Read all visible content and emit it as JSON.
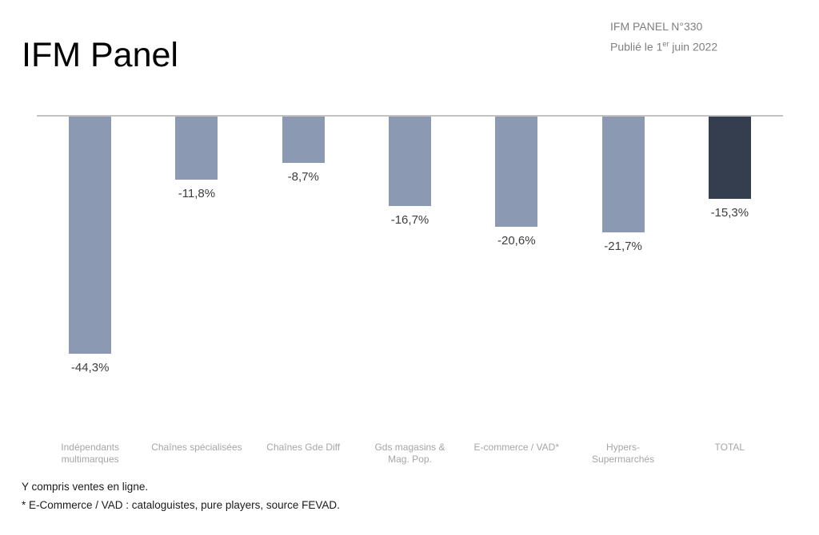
{
  "page": {
    "title": "IFM Panel",
    "header_right": {
      "line1": "IFM PANEL N°330",
      "line2_prefix": "Publié le 1",
      "line2_sup": "er",
      "line2_suffix": " juin 2022"
    },
    "footnotes": [
      "Y compris ventes en ligne.",
      "* E-Commerce / VAD : cataloguistes, pure players, source FEVAD."
    ]
  },
  "colors": {
    "bar_default": "#8b99b2",
    "bar_total": "#353e4f",
    "axis_line": "#c3c3c3",
    "data_label": "#3d3d3d",
    "category_label": "#a6a6a6",
    "header_right_text": "#7f7f7f"
  },
  "chart_data": {
    "type": "bar",
    "orientation": "vertical",
    "title": "IFM Panel",
    "xlabel": "",
    "ylabel": "",
    "ylim": [
      -50,
      0
    ],
    "grid": false,
    "legend": false,
    "baseline": 0,
    "categories": [
      "Indépendants multimarques",
      "Chaînes spécialisées",
      "Chaînes Gde Diff",
      "Gds magasins & Mag. Pop.",
      "E-commerce / VAD*",
      "Hypers-Supermarchés",
      "TOTAL"
    ],
    "values": [
      -44.3,
      -11.8,
      -8.7,
      -16.7,
      -20.6,
      -21.7,
      -15.3
    ],
    "data_labels": [
      "-44,3%",
      "-11,8%",
      "-8,7%",
      "-16,7%",
      "-20,6%",
      "-21,7%",
      "-15,3%"
    ],
    "bar_colors": [
      "#8b99b2",
      "#8b99b2",
      "#8b99b2",
      "#8b99b2",
      "#8b99b2",
      "#8b99b2",
      "#353e4f"
    ]
  }
}
